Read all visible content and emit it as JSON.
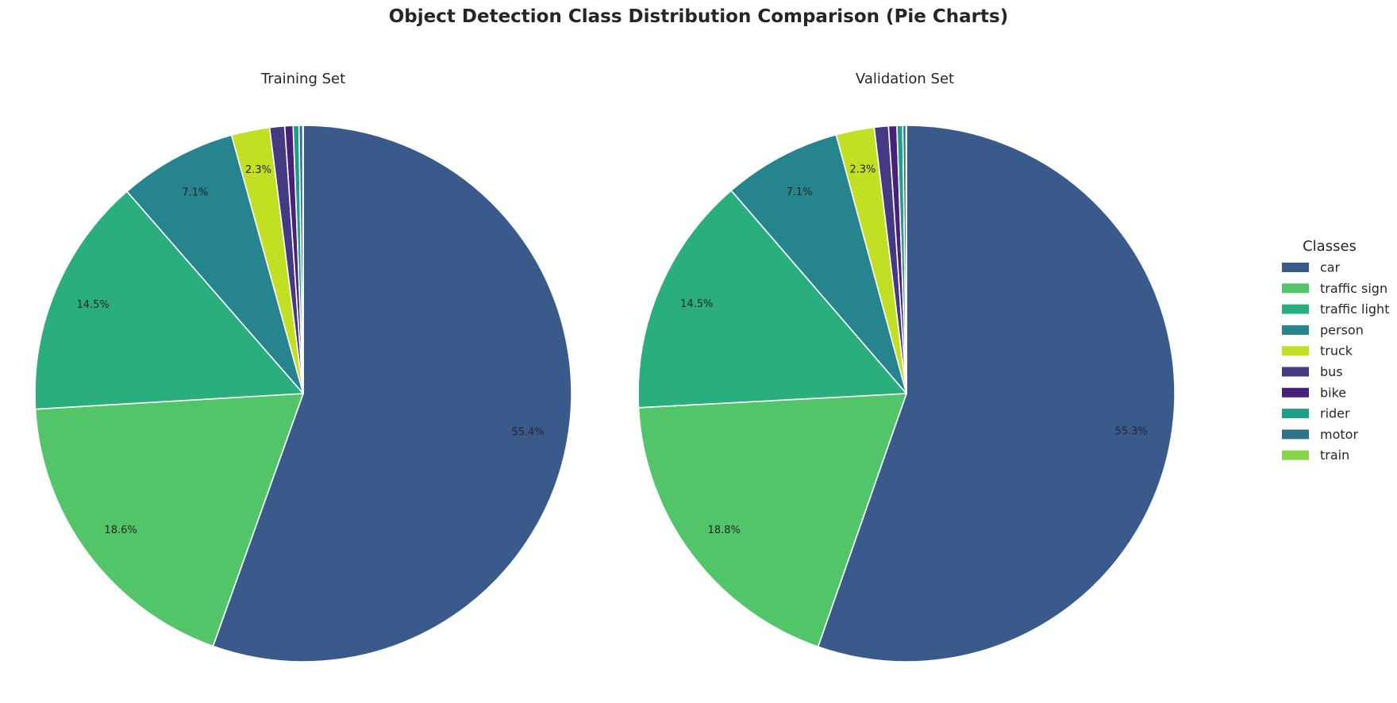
{
  "title": "Object Detection Class Distribution Comparison (Pie Charts)",
  "legend": {
    "title": "Classes",
    "placement": "right"
  },
  "classes": [
    "car",
    "traffic sign",
    "traffic light",
    "person",
    "truck",
    "bus",
    "bike",
    "rider",
    "motor",
    "train"
  ],
  "colors": {
    "car": "#3a5a8c",
    "traffic sign": "#52c569",
    "traffic light": "#2bae7d",
    "person": "#25848e",
    "truck": "#c2df23",
    "bus": "#443983",
    "bike": "#48227a",
    "rider": "#1f9e89",
    "motor": "#2c728e",
    "train": "#86d549"
  },
  "chart_data": [
    {
      "type": "pie",
      "title": "Training Set",
      "start_angle_deg": 90,
      "direction": "clockwise",
      "slices": [
        {
          "label": "car",
          "value": 55.4,
          "pct_label": "55.4%"
        },
        {
          "label": "traffic sign",
          "value": 18.6,
          "pct_label": "18.6%"
        },
        {
          "label": "traffic light",
          "value": 14.5,
          "pct_label": "14.5%"
        },
        {
          "label": "person",
          "value": 7.1,
          "pct_label": "7.1%"
        },
        {
          "label": "truck",
          "value": 2.3,
          "pct_label": "2.3%"
        },
        {
          "label": "bus",
          "value": 0.9,
          "pct_label": ""
        },
        {
          "label": "bike",
          "value": 0.5,
          "pct_label": ""
        },
        {
          "label": "rider",
          "value": 0.35,
          "pct_label": ""
        },
        {
          "label": "motor",
          "value": 0.23,
          "pct_label": ""
        },
        {
          "label": "train",
          "value": 0.02,
          "pct_label": ""
        }
      ]
    },
    {
      "type": "pie",
      "title": "Validation Set",
      "start_angle_deg": 90,
      "direction": "clockwise",
      "slices": [
        {
          "label": "car",
          "value": 55.3,
          "pct_label": "55.3%"
        },
        {
          "label": "traffic sign",
          "value": 18.8,
          "pct_label": "18.8%"
        },
        {
          "label": "traffic light",
          "value": 14.5,
          "pct_label": "14.5%"
        },
        {
          "label": "person",
          "value": 7.1,
          "pct_label": "7.1%"
        },
        {
          "label": "truck",
          "value": 2.3,
          "pct_label": "2.3%"
        },
        {
          "label": "bus",
          "value": 0.85,
          "pct_label": ""
        },
        {
          "label": "bike",
          "value": 0.5,
          "pct_label": ""
        },
        {
          "label": "rider",
          "value": 0.35,
          "pct_label": ""
        },
        {
          "label": "motor",
          "value": 0.2,
          "pct_label": ""
        },
        {
          "label": "train",
          "value": 0.02,
          "pct_label": ""
        }
      ]
    }
  ]
}
